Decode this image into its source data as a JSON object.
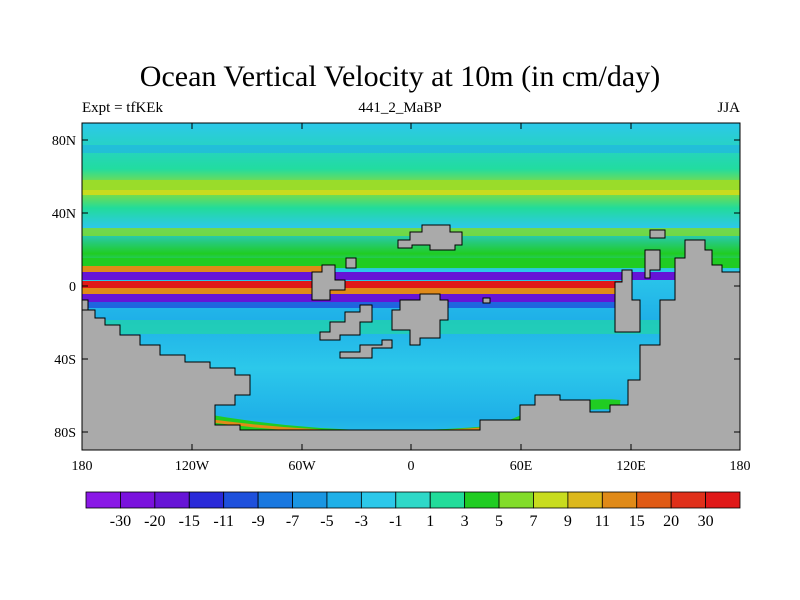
{
  "title": "Ocean Vertical Velocity at 10m (in cm/day)",
  "subtitle_left": "Expt = tfKEk",
  "subtitle_center": "441_2_MaBP",
  "subtitle_right": "JJA",
  "map": {
    "lat_ticks": [
      "80N",
      "40N",
      "0",
      "40S",
      "80S"
    ],
    "lon_ticks": [
      "180",
      "120W",
      "60W",
      "0",
      "60E",
      "120E",
      "180"
    ],
    "land_color": "#aaaaaa"
  },
  "colorbar": {
    "labels": [
      "-30",
      "-20",
      "-15",
      "-11",
      "-9",
      "-7",
      "-5",
      "-3",
      "-1",
      "1",
      "3",
      "5",
      "7",
      "9",
      "11",
      "15",
      "20",
      "30"
    ],
    "colors": [
      "#8a18e6",
      "#7a12dd",
      "#6614d6",
      "#2a2ad8",
      "#1e50dc",
      "#1978e0",
      "#1a96e2",
      "#1fb0e8",
      "#2cc8ea",
      "#2ed8c8",
      "#22dc9a",
      "#20cc22",
      "#82dc2a",
      "#c8dc1e",
      "#dcb81c",
      "#e08a18",
      "#e05a14",
      "#e0301a",
      "#e01818"
    ]
  }
}
